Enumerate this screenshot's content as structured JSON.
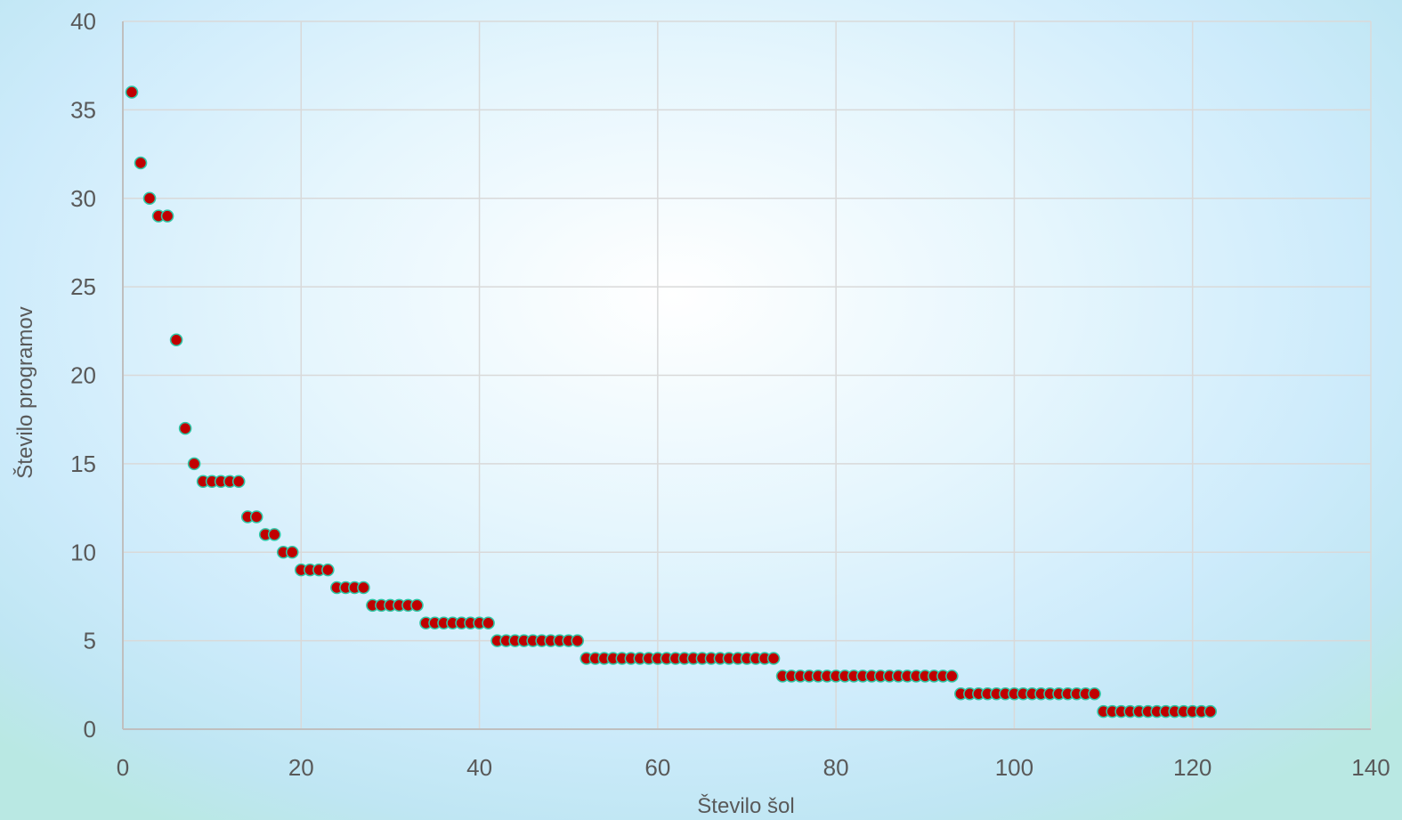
{
  "chart_data": {
    "type": "scatter",
    "title": "",
    "xlabel": "Število šol",
    "ylabel": "Število programov",
    "xlim": [
      0,
      140
    ],
    "ylim": [
      0,
      40
    ],
    "x_ticks": [
      0,
      20,
      40,
      60,
      80,
      100,
      120,
      140
    ],
    "y_ticks": [
      0,
      5,
      10,
      15,
      20,
      25,
      30,
      35,
      40
    ],
    "grid": true,
    "legend": "none",
    "marker": {
      "fill": "#c00000",
      "stroke": "#2ec7a6"
    },
    "gridline_color": "#d9d9d9",
    "series": [
      {
        "x": [
          1,
          2,
          3,
          4,
          5,
          6,
          7,
          8,
          9,
          10,
          11,
          12,
          13,
          14,
          15,
          16,
          17,
          18,
          19,
          20,
          21,
          22,
          23,
          24,
          25,
          26,
          27,
          28,
          29,
          30,
          31,
          32,
          33,
          34,
          35,
          36,
          37,
          38,
          39,
          40,
          41,
          42,
          43,
          44,
          45,
          46,
          47,
          48,
          49,
          50,
          51,
          52,
          53,
          54,
          55,
          56,
          57,
          58,
          59,
          60,
          61,
          62,
          63,
          64,
          65,
          66,
          67,
          68,
          69,
          70,
          71,
          72,
          73,
          74,
          75,
          76,
          77,
          78,
          79,
          80,
          81,
          82,
          83,
          84,
          85,
          86,
          87,
          88,
          89,
          90,
          91,
          92,
          93,
          94,
          95,
          96,
          97,
          98,
          99,
          100,
          101,
          102,
          103,
          104,
          105,
          106,
          107,
          108,
          109,
          110,
          111,
          112,
          113,
          114,
          115,
          116,
          117,
          118,
          119,
          120,
          121,
          122
        ],
        "y": [
          36,
          32,
          30,
          29,
          29,
          22,
          17,
          15,
          14,
          14,
          14,
          14,
          14,
          12,
          12,
          11,
          11,
          10,
          10,
          9,
          9,
          9,
          9,
          8,
          8,
          8,
          8,
          7,
          7,
          7,
          7,
          7,
          7,
          6,
          6,
          6,
          6,
          6,
          6,
          6,
          6,
          5,
          5,
          5,
          5,
          5,
          5,
          5,
          5,
          5,
          5,
          4,
          4,
          4,
          4,
          4,
          4,
          4,
          4,
          4,
          4,
          4,
          4,
          4,
          4,
          4,
          4,
          4,
          4,
          4,
          4,
          4,
          4,
          3,
          3,
          3,
          3,
          3,
          3,
          3,
          3,
          3,
          3,
          3,
          3,
          3,
          3,
          3,
          3,
          3,
          3,
          3,
          3,
          2,
          2,
          2,
          2,
          2,
          2,
          2,
          2,
          2,
          2,
          2,
          2,
          2,
          2,
          2,
          2,
          1,
          1,
          1,
          1,
          1,
          1,
          1,
          1,
          1,
          1,
          1,
          1,
          1
        ]
      }
    ]
  }
}
